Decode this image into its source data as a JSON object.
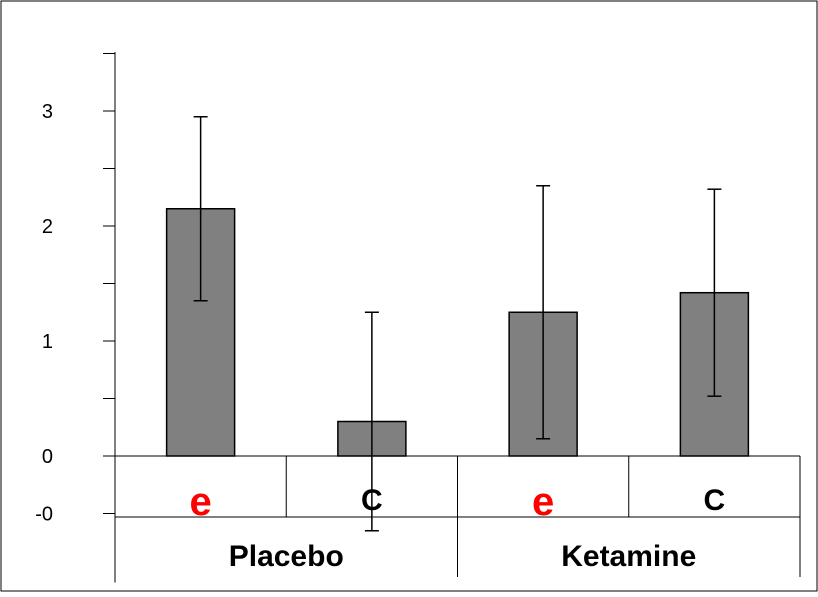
{
  "chart_data": {
    "type": "bar",
    "groups": [
      {
        "label": "Placebo",
        "categories": [
          "e",
          "C"
        ]
      },
      {
        "label": "Ketamine",
        "categories": [
          "e",
          "C"
        ]
      }
    ],
    "categories": [
      "e",
      "C",
      "e",
      "C"
    ],
    "values": [
      2.15,
      0.3,
      1.25,
      1.42
    ],
    "error_bars": [
      0.8,
      0.95,
      1.1,
      0.9
    ],
    "ytick_labels": [
      "3",
      "2",
      "1",
      "0",
      "-0"
    ],
    "ytick_values": [
      3,
      2,
      1,
      0,
      -0.5
    ],
    "ylim": [
      -1.1,
      3.5
    ],
    "grid": false,
    "colors": {
      "bar_fill": "#808080",
      "bar_stroke": "#000000",
      "e_label": "#ff0000",
      "C_label": "#000000"
    }
  }
}
